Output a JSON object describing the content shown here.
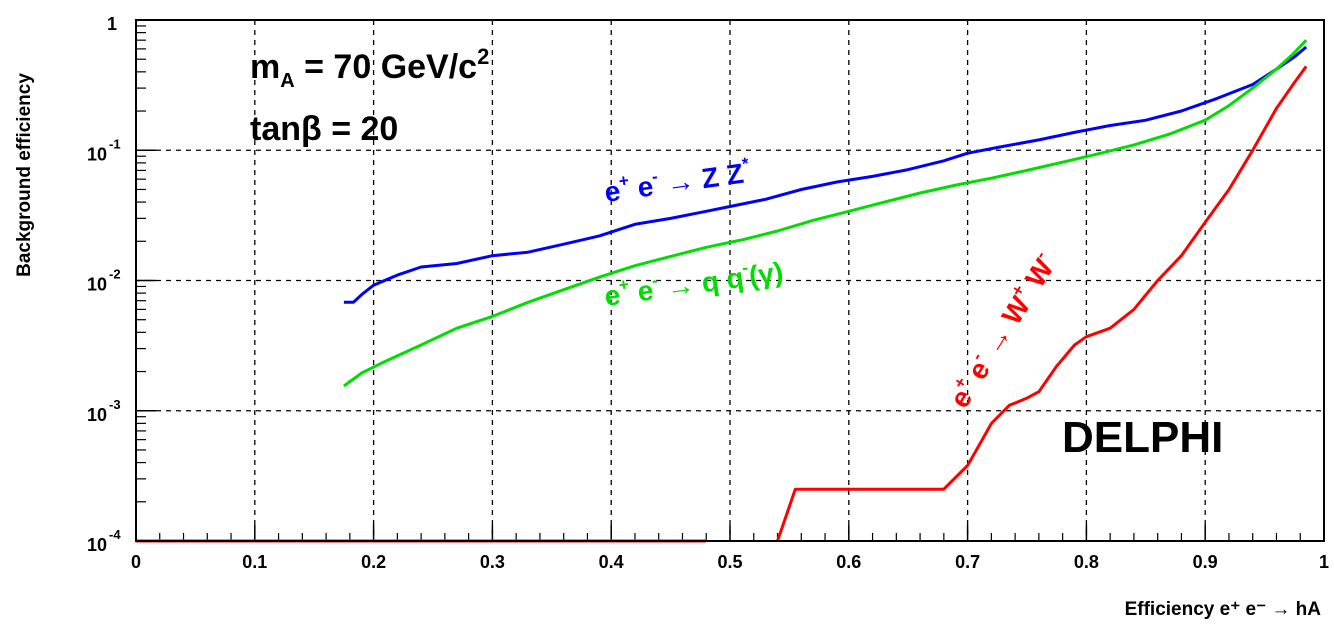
{
  "chart_data": {
    "type": "line",
    "xlabel": "Efficiency e⁺ e⁻ → hA",
    "ylabel": "Background efficiency",
    "xlim": [
      0,
      1
    ],
    "ylim": [
      0.0001,
      1
    ],
    "yscale": "log",
    "grid": true,
    "x_ticks": [
      "0",
      "0.1",
      "0.2",
      "0.3",
      "0.4",
      "0.5",
      "0.6",
      "0.7",
      "0.8",
      "0.9",
      "1"
    ],
    "y_ticks": [
      {
        "base": "10",
        "exp": "-4",
        "value": 0.0001
      },
      {
        "base": "10",
        "exp": "-3",
        "value": 0.001
      },
      {
        "base": "10",
        "exp": "-2",
        "value": 0.01
      },
      {
        "base": "10",
        "exp": "-1",
        "value": 0.1
      },
      {
        "base": "1",
        "exp": "",
        "value": 1
      }
    ],
    "annotations": {
      "mass_line": {
        "m": "m",
        "sub": "A",
        "rest": " = 70 GeV/c",
        "sup": "2"
      },
      "tanb_line": "tanβ = 20",
      "experiment": "DELPHI",
      "zz_label": {
        "base": "e",
        "sup1": "+",
        "mid": " e",
        "sup2": "-",
        "arrow": " → Z Z",
        "sup3": "*"
      },
      "qq_label": {
        "base": "e",
        "sup1": "+",
        "mid": " e",
        "sup2": "-",
        "arrow": " → q q",
        "bar": "-",
        "tail": "(γ)"
      },
      "ww_label": {
        "base": "e",
        "sup1": "+",
        "mid": " e",
        "sup2": "-",
        "arrow": " → W",
        "sup3": "+",
        "tail": " W",
        "sup4": "-"
      }
    },
    "series": [
      {
        "id": "zz",
        "color": "#0000ff",
        "points": [
          [
            0.175,
            0.0068
          ],
          [
            0.183,
            0.0068
          ],
          [
            0.19,
            0.0078
          ],
          [
            0.2,
            0.0092
          ],
          [
            0.22,
            0.011
          ],
          [
            0.24,
            0.0127
          ],
          [
            0.27,
            0.0135
          ],
          [
            0.3,
            0.0155
          ],
          [
            0.33,
            0.0165
          ],
          [
            0.36,
            0.019
          ],
          [
            0.39,
            0.022
          ],
          [
            0.42,
            0.027
          ],
          [
            0.45,
            0.03
          ],
          [
            0.48,
            0.034
          ],
          [
            0.5,
            0.037
          ],
          [
            0.53,
            0.042
          ],
          [
            0.56,
            0.05
          ],
          [
            0.59,
            0.057
          ],
          [
            0.62,
            0.063
          ],
          [
            0.65,
            0.071
          ],
          [
            0.68,
            0.083
          ],
          [
            0.7,
            0.095
          ],
          [
            0.73,
            0.107
          ],
          [
            0.76,
            0.12
          ],
          [
            0.79,
            0.137
          ],
          [
            0.82,
            0.155
          ],
          [
            0.85,
            0.17
          ],
          [
            0.88,
            0.2
          ],
          [
            0.91,
            0.25
          ],
          [
            0.94,
            0.32
          ],
          [
            0.96,
            0.42
          ],
          [
            0.975,
            0.52
          ],
          [
            0.985,
            0.62
          ]
        ]
      },
      {
        "id": "qq",
        "color": "#00dd00",
        "points": [
          [
            0.175,
            0.00155
          ],
          [
            0.19,
            0.00195
          ],
          [
            0.21,
            0.0024
          ],
          [
            0.24,
            0.0032
          ],
          [
            0.27,
            0.0043
          ],
          [
            0.3,
            0.0053
          ],
          [
            0.33,
            0.0068
          ],
          [
            0.36,
            0.0085
          ],
          [
            0.39,
            0.0106
          ],
          [
            0.42,
            0.013
          ],
          [
            0.45,
            0.0153
          ],
          [
            0.48,
            0.018
          ],
          [
            0.51,
            0.0205
          ],
          [
            0.54,
            0.024
          ],
          [
            0.57,
            0.029
          ],
          [
            0.6,
            0.034
          ],
          [
            0.63,
            0.04
          ],
          [
            0.66,
            0.047
          ],
          [
            0.69,
            0.054
          ],
          [
            0.72,
            0.061
          ],
          [
            0.75,
            0.07
          ],
          [
            0.78,
            0.081
          ],
          [
            0.81,
            0.094
          ],
          [
            0.84,
            0.11
          ],
          [
            0.87,
            0.133
          ],
          [
            0.9,
            0.17
          ],
          [
            0.92,
            0.22
          ],
          [
            0.94,
            0.3
          ],
          [
            0.96,
            0.42
          ],
          [
            0.975,
            0.56
          ],
          [
            0.985,
            0.7
          ]
        ]
      },
      {
        "id": "ww",
        "color": "#ff0000",
        "points": [
          [
            0.0,
            0.0001
          ],
          [
            0.48,
            0.0001
          ],
          [
            0.48,
            null
          ],
          [
            0.54,
            0.0001
          ],
          [
            0.555,
            0.00025
          ],
          [
            0.68,
            0.00025
          ],
          [
            0.7,
            0.00038
          ],
          [
            0.71,
            0.00055
          ],
          [
            0.72,
            0.0008
          ],
          [
            0.735,
            0.0011
          ],
          [
            0.75,
            0.00125
          ],
          [
            0.76,
            0.0014
          ],
          [
            0.775,
            0.0022
          ],
          [
            0.79,
            0.0032
          ],
          [
            0.8,
            0.0037
          ],
          [
            0.82,
            0.0043
          ],
          [
            0.84,
            0.006
          ],
          [
            0.86,
            0.01
          ],
          [
            0.88,
            0.0155
          ],
          [
            0.9,
            0.028
          ],
          [
            0.92,
            0.05
          ],
          [
            0.94,
            0.1
          ],
          [
            0.96,
            0.21
          ],
          [
            0.975,
            0.33
          ],
          [
            0.985,
            0.44
          ]
        ]
      }
    ]
  }
}
